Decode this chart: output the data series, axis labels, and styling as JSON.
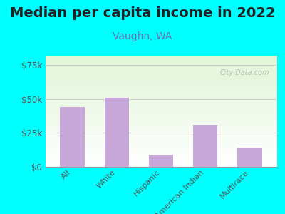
{
  "title": "Median per capita income in 2022",
  "subtitle": "Vaughn, WA",
  "categories": [
    "All",
    "White",
    "Hispanic",
    "American Indian",
    "Multirace"
  ],
  "values": [
    44000,
    51000,
    9000,
    31000,
    14000
  ],
  "bar_color": "#c8a8d8",
  "background_outer": "#00FFFF",
  "yticks": [
    0,
    25000,
    50000,
    75000
  ],
  "ytick_labels": [
    "$0",
    "$25k",
    "$50k",
    "$75k"
  ],
  "ylim": [
    0,
    82000
  ],
  "title_fontsize": 14,
  "subtitle_fontsize": 10,
  "subtitle_color": "#7070b0",
  "title_color": "#222222",
  "tick_label_color": "#555555",
  "watermark": "City-Data.com",
  "bar_width": 0.55,
  "xlim": [
    -0.6,
    4.6
  ]
}
